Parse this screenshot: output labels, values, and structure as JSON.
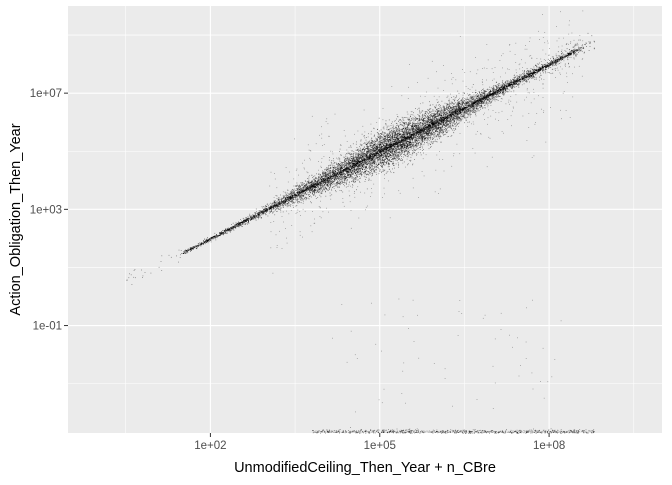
{
  "chart_data": {
    "type": "scatter",
    "title": "",
    "xlabel": "UnmodifiedCeiling_Then_Year + n_CBre",
    "ylabel": "Action_Obligation_Then_Year",
    "x_scale": "log10",
    "y_scale": "log10",
    "xlim": [
      0.3,
      10000000000.0
    ],
    "ylim": [
      2e-05,
      10000000000.0
    ],
    "x_ticks": [
      {
        "value": 100,
        "label": "1e+02"
      },
      {
        "value": 100000,
        "label": "1e+05"
      },
      {
        "value": 100000000,
        "label": "1e+08"
      }
    ],
    "y_ticks": [
      {
        "value": 0.1,
        "label": "1e-01"
      },
      {
        "value": 1000,
        "label": "1e+03"
      },
      {
        "value": 10000000,
        "label": "1e+07"
      }
    ],
    "grid": true,
    "legend": "none",
    "point_color": "#000000",
    "panel_background": "#ebebeb",
    "grid_color": "#ffffff",
    "distribution": {
      "trend": "y ≈ x along the diagonal in log-log space",
      "density_peak_x": 200000,
      "x_range": [
        3,
        500000000.0
      ],
      "y_range": [
        1e-05,
        1000000000.0
      ]
    }
  }
}
